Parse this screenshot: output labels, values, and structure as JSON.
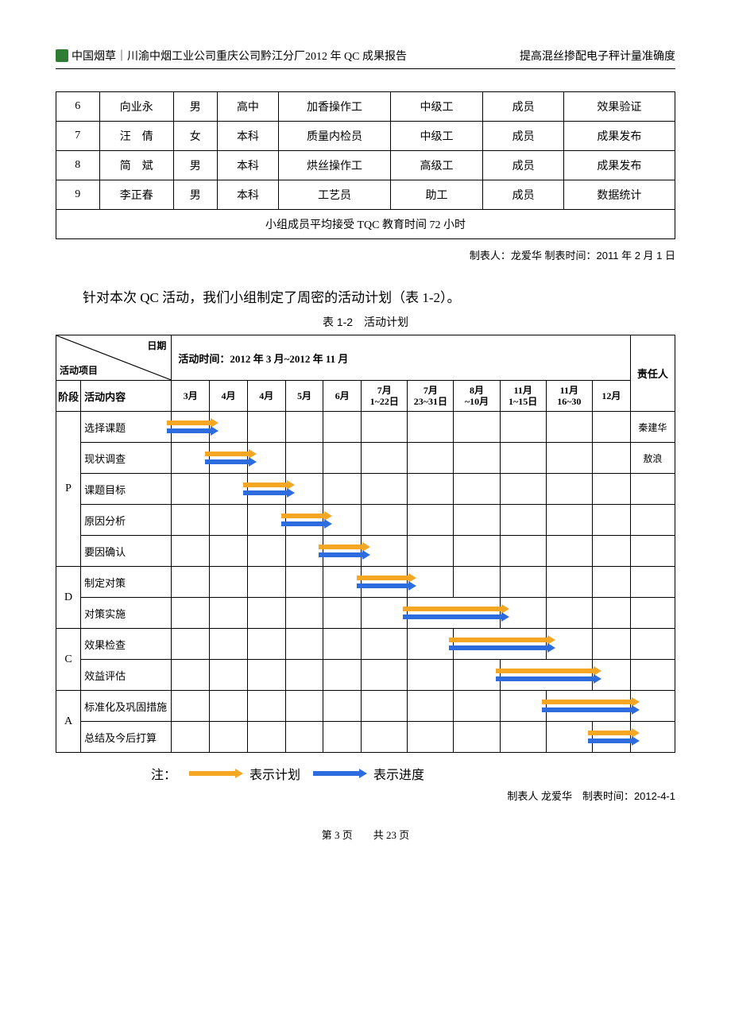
{
  "header": {
    "left": "中国烟草｜川渝中烟工业公司重庆公司黔江分厂2012 年 QC 成果报告",
    "right": "提高混丝掺配电子秤计量准确度"
  },
  "members": {
    "rows": [
      {
        "n": "6",
        "name": "向业永",
        "sex": "男",
        "edu": "高中",
        "post": "加香操作工",
        "level": "中级工",
        "role": "成员",
        "duty": "效果验证"
      },
      {
        "n": "7",
        "name": "汪　倩",
        "sex": "女",
        "edu": "本科",
        "post": "质量内检员",
        "level": "中级工",
        "role": "成员",
        "duty": "成果发布"
      },
      {
        "n": "8",
        "name": "简　斌",
        "sex": "男",
        "edu": "本科",
        "post": "烘丝操作工",
        "level": "高级工",
        "role": "成员",
        "duty": "成果发布"
      },
      {
        "n": "9",
        "name": "李正春",
        "sex": "男",
        "edu": "本科",
        "post": "工艺员",
        "level": "助工",
        "role": "成员",
        "duty": "数据统计"
      }
    ],
    "footer_row": "小组成员平均接受 TQC 教育时间 72 小时",
    "caption": "制表人：龙爱华  制表时间：2011 年 2 月 1 日"
  },
  "para": "针对本次 QC 活动，我们小组制定了周密的活动计划（表 1-2）。",
  "gantt": {
    "title": "表 1-2　活动计划",
    "diag": {
      "top": "日期",
      "bottom": "活动项目"
    },
    "period_label": "活动时间：2012 年 3 月~2012 年 11 月",
    "stage_hdr": "阶段",
    "content_hdr": "活动内容",
    "resp_hdr": "责任人",
    "months": [
      "3月",
      "4月",
      "4月",
      "5月",
      "6月",
      "7月\n1~22日",
      "7月\n23~31日",
      "8月\n~10月",
      "11月\n1~15日",
      "11月\n16~30",
      "12月"
    ],
    "stages": [
      {
        "code": "P",
        "rows": [
          {
            "name": "选择课题",
            "col": 0,
            "resp": "秦建华"
          },
          {
            "name": "现状调查",
            "col": 1,
            "resp": "敖浪"
          },
          {
            "name": "课题目标",
            "col": 2,
            "resp": ""
          },
          {
            "name": "原因分析",
            "col": 3,
            "resp": ""
          },
          {
            "name": "要因确认",
            "col": 4,
            "resp": ""
          }
        ]
      },
      {
        "code": "D",
        "rows": [
          {
            "name": "制定对策",
            "col": 5,
            "resp": ""
          },
          {
            "name": "对策实施",
            "col": 6,
            "span": 2,
            "resp": ""
          }
        ]
      },
      {
        "code": "C",
        "rows": [
          {
            "name": "效果检查",
            "col": 7,
            "span": 2,
            "resp": ""
          },
          {
            "name": "效益评估",
            "col": 8,
            "span": 2,
            "resp": ""
          }
        ]
      },
      {
        "code": "A",
        "rows": [
          {
            "name": "标准化及巩固措施",
            "col": 9,
            "span": 2,
            "resp": ""
          },
          {
            "name": "总结及今后打算",
            "col": 10,
            "resp": ""
          }
        ]
      }
    ],
    "note_prefix": "注：",
    "note_plan": "表示计划",
    "note_prog": "表示进度",
    "caption": "制表人  龙爱华　制表时间：2012-4-1",
    "colors": {
      "plan": "#f5a623",
      "progress": "#2d6cdf"
    }
  },
  "footer": "第  3  页　　共 23 页"
}
